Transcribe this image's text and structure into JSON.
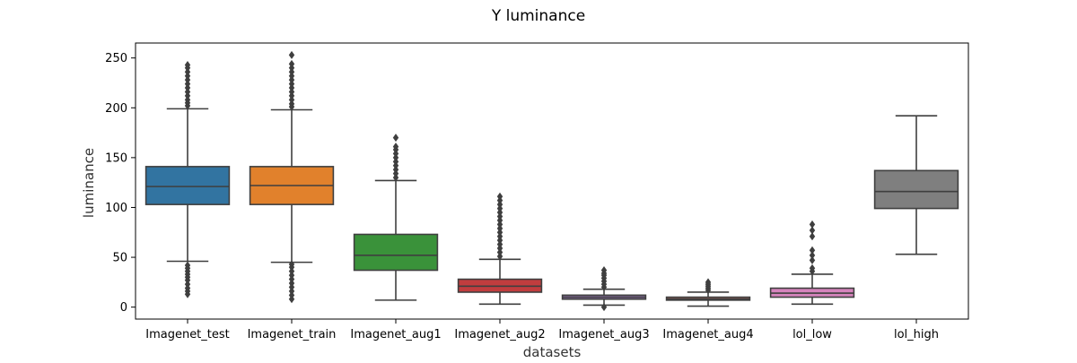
{
  "chart_data": {
    "type": "box",
    "title": "Y luminance",
    "xlabel": "datasets",
    "ylabel": "luminance",
    "ylim": [
      -12,
      265
    ],
    "yticks": [
      0,
      50,
      100,
      150,
      200,
      250
    ],
    "grid": false,
    "legend": "none",
    "categories": [
      "Imagenet_test",
      "Imagenet_train",
      "Imagenet_aug1",
      "Imagenet_aug2",
      "Imagenet_aug3",
      "Imagenet_aug4",
      "lol_low",
      "lol_high"
    ],
    "boxes": [
      {
        "category": "Imagenet_test",
        "color": "#3274a1",
        "whisker_low": 46,
        "q1": 103,
        "median": 121,
        "q3": 141,
        "whisker_high": 199,
        "outliers": [
          13,
          16,
          19,
          23,
          27,
          30,
          33,
          36,
          39,
          42,
          202,
          205,
          208,
          212,
          216,
          220,
          224,
          228,
          232,
          236,
          240,
          243
        ]
      },
      {
        "category": "Imagenet_train",
        "color": "#e1812c",
        "whisker_low": 45,
        "q1": 103,
        "median": 122,
        "q3": 141,
        "whisker_high": 198,
        "outliers": [
          8,
          12,
          16,
          20,
          24,
          28,
          32,
          36,
          40,
          43,
          201,
          204,
          208,
          212,
          216,
          220,
          224,
          228,
          232,
          236,
          240,
          244,
          253
        ]
      },
      {
        "category": "Imagenet_aug1",
        "color": "#3a923a",
        "whisker_low": 7,
        "q1": 37,
        "median": 52,
        "q3": 73,
        "whisker_high": 127,
        "outliers": [
          130,
          134,
          138,
          142,
          146,
          150,
          154,
          158,
          161,
          170
        ]
      },
      {
        "category": "Imagenet_aug2",
        "color": "#c03d3e",
        "whisker_low": 3,
        "q1": 15,
        "median": 21,
        "q3": 28,
        "whisker_high": 48,
        "outliers": [
          51,
          55,
          59,
          63,
          67,
          71,
          75,
          79,
          83,
          87,
          91,
          95,
          99,
          103,
          107,
          111
        ]
      },
      {
        "category": "Imagenet_aug3",
        "color": "#9372b2",
        "whisker_low": 2,
        "q1": 8,
        "median": 10,
        "q3": 12,
        "whisker_high": 18,
        "outliers": [
          0,
          20,
          23,
          26,
          29,
          32,
          34,
          37
        ]
      },
      {
        "category": "Imagenet_aug4",
        "color": "#845b53",
        "whisker_low": 1,
        "q1": 7,
        "median": 8,
        "q3": 10,
        "whisker_high": 15,
        "outliers": [
          17,
          19,
          21,
          23,
          25
        ]
      },
      {
        "category": "lol_low",
        "color": "#d684bd",
        "whisker_low": 3,
        "q1": 10,
        "median": 14,
        "q3": 19,
        "whisker_high": 33,
        "outliers": [
          36,
          39,
          47,
          52,
          57,
          71,
          77,
          83
        ]
      },
      {
        "category": "lol_high",
        "color": "#7f7f7f",
        "whisker_low": 53,
        "q1": 99,
        "median": 116,
        "q3": 137,
        "whisker_high": 192,
        "outliers": []
      }
    ]
  }
}
